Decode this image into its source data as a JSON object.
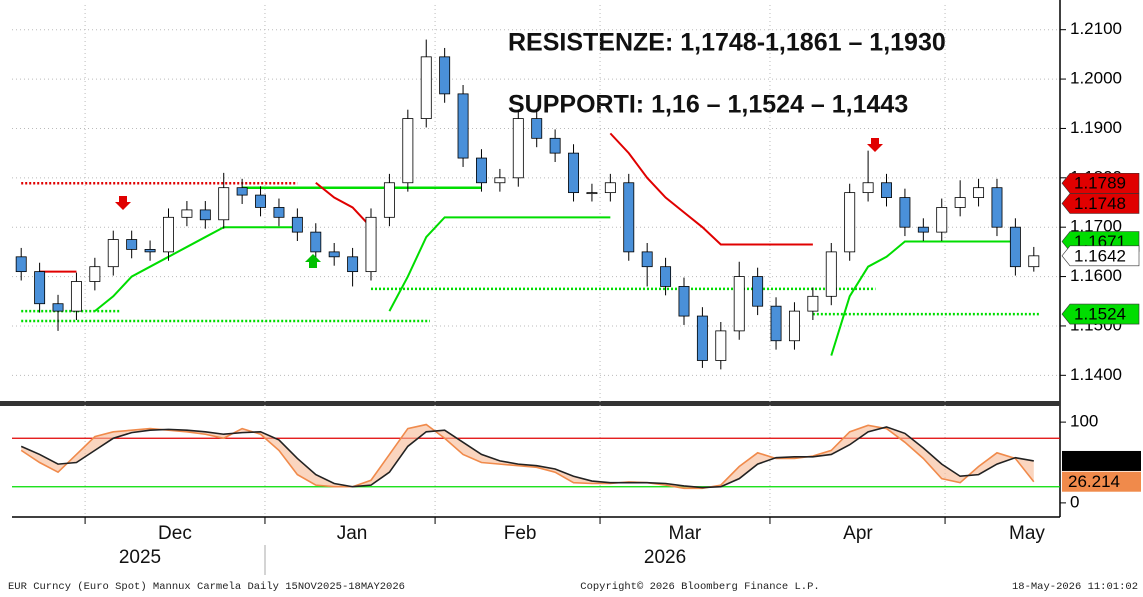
{
  "chart_data": {
    "type": "candlestick",
    "annotations": [
      "RESISTENZE: 1,1748-1,1861 – 1,1930",
      "SUPPORTI: 1,16 – 1,1524 – 1,1443"
    ],
    "footer": {
      "left": "EUR Curncy (Euro Spot) Mannux Carmela Daily 15NOV2025-18MAY2026",
      "center": "Copyright© 2026 Bloomberg Finance L.P.",
      "right": "18-May-2026 11:01:02"
    },
    "xticks": [
      {
        "value": 8.35,
        "label": "Dec"
      },
      {
        "value": 17.97,
        "label": "Jan"
      },
      {
        "value": 27.1,
        "label": "Feb"
      },
      {
        "value": 36.05,
        "label": "Mar"
      },
      {
        "value": 45.45,
        "label": "Apr"
      },
      {
        "value": 54.63,
        "label": "May"
      }
    ],
    "years": [
      {
        "value": 6.45,
        "label": "2025"
      },
      {
        "value": 34.97,
        "label": "2026"
      }
    ],
    "xgrid": [
      3.47,
      13.24,
      22.48,
      31.44,
      40.67,
      50.18
    ],
    "ylim": [
      1.135,
      1.215
    ],
    "yticks": [
      {
        "value": 1.14,
        "label": "1.1400"
      },
      {
        "value": 1.15,
        "label": "1.1500"
      },
      {
        "value": 1.16,
        "label": "1.1600"
      },
      {
        "value": 1.17,
        "label": "1.1700"
      },
      {
        "value": 1.18,
        "label": "1.1800"
      },
      {
        "value": 1.19,
        "label": "1.1900"
      },
      {
        "value": 1.2,
        "label": "1.2000"
      },
      {
        "value": 1.21,
        "label": "1.2100"
      }
    ],
    "grid": true,
    "up_color": "#ffffff",
    "down_color": "#4a90d9",
    "open": [
      1.164,
      1.161,
      1.1545,
      1.153,
      1.159,
      1.162,
      1.1675,
      1.1655,
      1.165,
      1.172,
      1.1735,
      1.1715,
      1.178,
      1.1765,
      1.174,
      1.172,
      1.169,
      1.165,
      1.164,
      1.161,
      1.172,
      1.179,
      1.192,
      1.2045,
      1.197,
      1.184,
      1.179,
      1.18,
      1.192,
      1.188,
      1.185,
      1.177,
      1.177,
      1.179,
      1.165,
      1.162,
      1.158,
      1.152,
      1.143,
      1.149,
      1.16,
      1.154,
      1.147,
      1.153,
      1.156,
      1.165,
      1.177,
      1.179,
      1.176,
      1.17,
      1.169,
      1.174,
      1.176,
      1.178,
      1.17,
      1.162
    ],
    "high": [
      1.1658,
      1.1628,
      1.1563,
      1.1608,
      1.1638,
      1.1693,
      1.1693,
      1.1673,
      1.1738,
      1.1753,
      1.1753,
      1.181,
      1.1798,
      1.1783,
      1.1758,
      1.1738,
      1.1708,
      1.1668,
      1.1658,
      1.1738,
      1.1808,
      1.1938,
      1.208,
      1.2063,
      1.1988,
      1.1858,
      1.1818,
      1.1938,
      1.1938,
      1.1898,
      1.1868,
      1.1788,
      1.1808,
      1.1808,
      1.1668,
      1.1638,
      1.1598,
      1.1538,
      1.1508,
      1.163,
      1.1618,
      1.1558,
      1.1548,
      1.1578,
      1.1668,
      1.1788,
      1.1855,
      1.1808,
      1.1778,
      1.1718,
      1.1758,
      1.1795,
      1.1798,
      1.1798,
      1.1718,
      1.166
    ],
    "low": [
      1.1592,
      1.1527,
      1.149,
      1.1512,
      1.1572,
      1.1602,
      1.1637,
      1.1632,
      1.1632,
      1.1702,
      1.1697,
      1.1697,
      1.1747,
      1.1722,
      1.1702,
      1.1672,
      1.1632,
      1.1622,
      1.158,
      1.1592,
      1.1702,
      1.1772,
      1.1902,
      1.1952,
      1.1822,
      1.1772,
      1.1772,
      1.1782,
      1.1862,
      1.1832,
      1.1752,
      1.1752,
      1.1752,
      1.1632,
      1.158,
      1.1562,
      1.1502,
      1.1415,
      1.1412,
      1.1472,
      1.1522,
      1.1452,
      1.1452,
      1.1512,
      1.1542,
      1.1632,
      1.1752,
      1.1742,
      1.1682,
      1.1672,
      1.1672,
      1.1722,
      1.1742,
      1.1682,
      1.1602,
      1.161
    ],
    "close": [
      1.161,
      1.1545,
      1.153,
      1.159,
      1.162,
      1.1675,
      1.1655,
      1.165,
      1.172,
      1.1735,
      1.1715,
      1.178,
      1.1765,
      1.174,
      1.172,
      1.169,
      1.165,
      1.164,
      1.161,
      1.172,
      1.179,
      1.192,
      1.2045,
      1.197,
      1.184,
      1.179,
      1.18,
      1.192,
      1.188,
      1.185,
      1.177,
      1.177,
      1.179,
      1.165,
      1.162,
      1.158,
      1.152,
      1.143,
      1.149,
      1.16,
      1.154,
      1.147,
      1.153,
      1.156,
      1.165,
      1.177,
      1.179,
      1.176,
      1.17,
      1.169,
      1.174,
      1.176,
      1.178,
      1.17,
      1.162,
      1.1642
    ],
    "lines": [
      {
        "color": "#e00000",
        "values": [
          null,
          1.161,
          1.161,
          1.161,
          null,
          null,
          null,
          null,
          null,
          null,
          null,
          null,
          null,
          null,
          null,
          null,
          1.179,
          1.176,
          1.174,
          1.17,
          null,
          null,
          null,
          null,
          null,
          null,
          null,
          null,
          null,
          null,
          null,
          null,
          1.189,
          1.185,
          1.18,
          1.176,
          1.173,
          1.17,
          1.1665,
          1.1665,
          1.1665,
          1.1665,
          1.1665,
          1.1665,
          null,
          null,
          null,
          null,
          null,
          null,
          null,
          null,
          null,
          null,
          null,
          1.177
        ]
      },
      {
        "color": "#00dd00",
        "values": [
          null,
          null,
          null,
          null,
          1.153,
          1.156,
          1.16,
          1.162,
          1.164,
          1.166,
          1.168,
          1.17,
          1.17,
          1.17,
          1.17,
          1.17,
          null,
          null,
          null,
          null,
          1.153,
          1.16,
          1.168,
          1.172,
          1.172,
          1.172,
          1.172,
          1.172,
          1.172,
          1.172,
          1.172,
          1.172,
          1.172,
          null,
          null,
          null,
          null,
          null,
          null,
          null,
          null,
          null,
          null,
          null,
          1.144,
          1.156,
          1.162,
          1.164,
          1.1671,
          1.1671,
          1.1671,
          1.1671,
          1.1671,
          1.1671,
          1.1671,
          null
        ]
      }
    ],
    "levels": [
      {
        "value": 1.1789,
        "from": 0,
        "to": 15,
        "color": "#e00000",
        "dashed": true
      },
      {
        "value": 1.178,
        "from": 12,
        "to": 25,
        "color": "#00dd00",
        "dashed": false
      },
      {
        "value": 1.151,
        "from": 0,
        "to": 22.2,
        "color": "#00dd00",
        "dashed": true
      },
      {
        "value": 1.153,
        "from": 0,
        "to": 5.4,
        "color": "#00dd00",
        "dashed": true
      },
      {
        "value": 1.1575,
        "from": 19,
        "to": 46.4,
        "color": "#00dd00",
        "dashed": true
      },
      {
        "value": 1.1524,
        "from": 43,
        "to": 55.3,
        "color": "#00dd00",
        "dashed": true
      }
    ],
    "price_labels": [
      {
        "value": 1.1789,
        "color": "#e00000",
        "text_color": "#ffffff"
      },
      {
        "value": 1.1748,
        "color": "#e00000",
        "text_color": "#ffffff"
      },
      {
        "value": 1.1671,
        "color": "#00dd00",
        "text_color": "#000000"
      },
      {
        "value": 1.1642,
        "color": "#ffffff",
        "text_color": "#000000"
      },
      {
        "value": 1.1524,
        "color": "#00dd00",
        "text_color": "#000000"
      }
    ],
    "indicator": {
      "ylim": [
        -15,
        115
      ],
      "yticks": [
        0,
        100
      ],
      "levels": [
        {
          "value": 80,
          "color": "#e00000"
        },
        {
          "value": 20,
          "color": "#00dd00"
        }
      ],
      "fill": "#f7b995",
      "series": [
        {
          "color": "#f08a4b",
          "label_color": "#f08a4b",
          "label_text": "#000000",
          "values": [
            65,
            50,
            38,
            60,
            82,
            88,
            90,
            92,
            90,
            88,
            85,
            80,
            92,
            85,
            65,
            35,
            22,
            20,
            20,
            28,
            60,
            92,
            97,
            80,
            60,
            50,
            48,
            46,
            44,
            38,
            25,
            24,
            24,
            26,
            25,
            22,
            18,
            18,
            22,
            45,
            62,
            55,
            55,
            58,
            65,
            88,
            96,
            92,
            75,
            55,
            30,
            25,
            45,
            62,
            55,
            26.214
          ]
        },
        {
          "color": "#222222",
          "label_color": "#000000",
          "label_text": "#ffffff",
          "values": [
            70,
            60,
            48,
            50,
            65,
            80,
            87,
            90,
            91,
            90,
            88,
            85,
            87,
            88,
            78,
            55,
            35,
            24,
            20,
            22,
            38,
            70,
            88,
            90,
            75,
            60,
            52,
            48,
            46,
            42,
            33,
            27,
            25,
            25,
            25,
            24,
            21,
            19,
            20,
            30,
            48,
            56,
            57,
            57,
            60,
            72,
            88,
            94,
            86,
            68,
            48,
            33,
            35,
            48,
            56,
            51.9014
          ]
        }
      ]
    }
  }
}
